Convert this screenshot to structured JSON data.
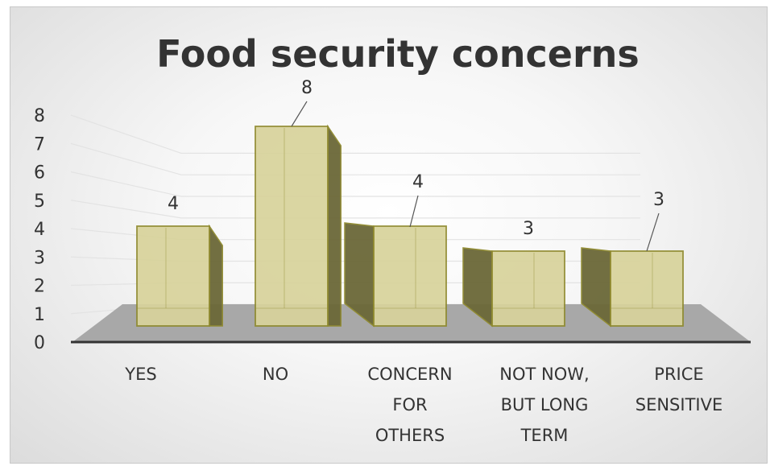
{
  "chart_data": {
    "type": "bar",
    "title": "Food security concerns",
    "categories": [
      [
        "YES"
      ],
      [
        "NO"
      ],
      [
        "CONCERN",
        "FOR",
        "OTHERS"
      ],
      [
        "NOT NOW,",
        "BUT LONG",
        "TERM"
      ],
      [
        "PRICE",
        "SENSITIVE"
      ]
    ],
    "values": [
      4,
      8,
      4,
      3,
      3
    ],
    "data_labels": [
      "4",
      "8",
      "4",
      "3",
      "3"
    ],
    "y_ticks": [
      "0",
      "1",
      "2",
      "3",
      "4",
      "5",
      "6",
      "7",
      "8"
    ],
    "ylim": [
      0,
      8
    ],
    "style": "3d-column",
    "colors": {
      "bar_front": "#d8d39b",
      "bar_side": "#6b6838",
      "bar_edge": "#8f8a2e",
      "floor": "#a8a8a8",
      "axis": "#333333"
    },
    "grid": true,
    "legend": "none"
  }
}
